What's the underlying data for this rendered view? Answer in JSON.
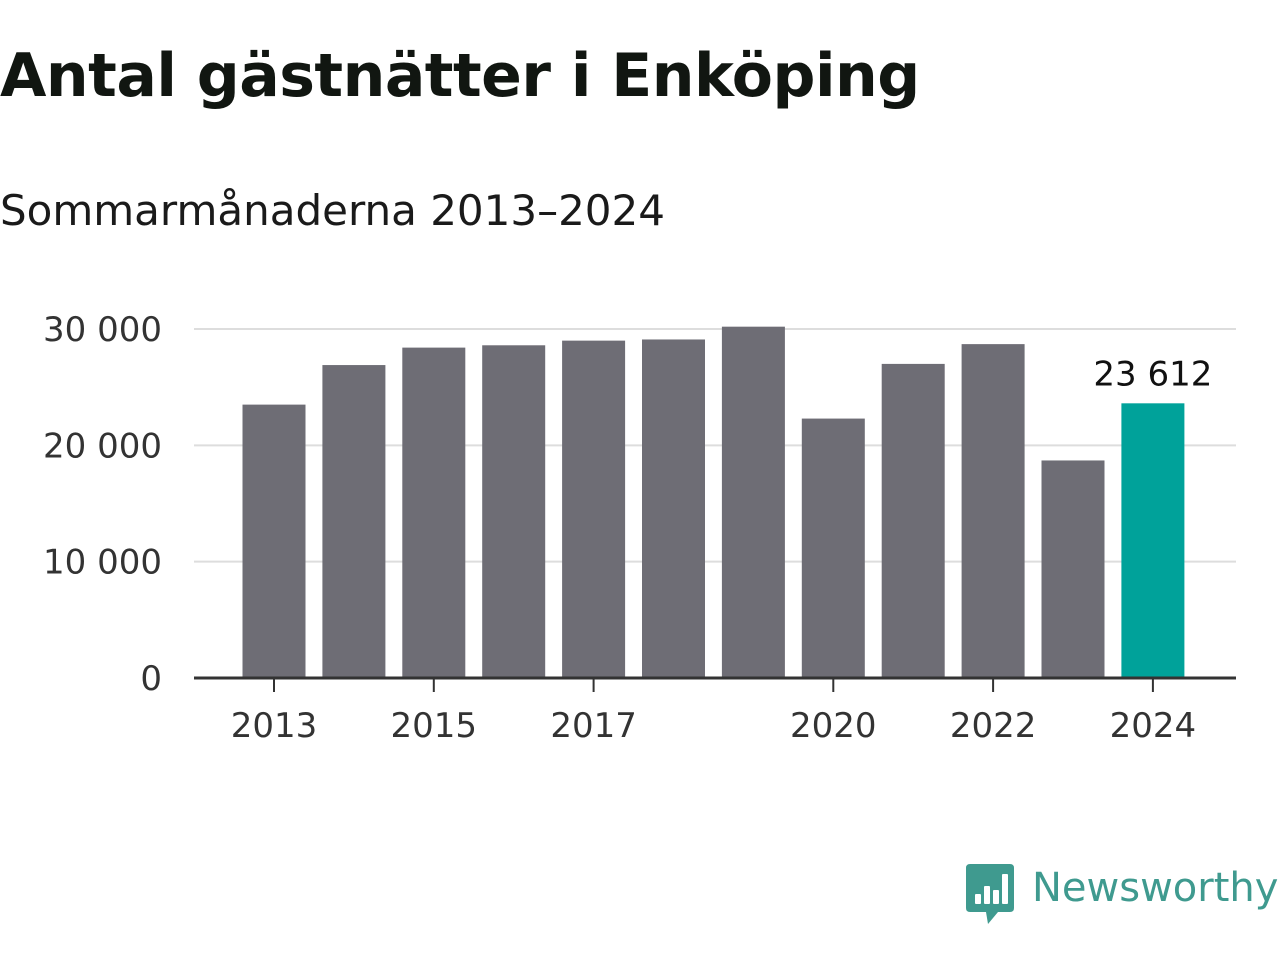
{
  "title": "Antal gästnätter i Enköping",
  "subtitle": "Sommarmånaderna 2013–2024",
  "logo": {
    "text": "Newsworthy",
    "icon": "newsworthy-chart-bubble-icon",
    "color": "#3f9a8f"
  },
  "colors": {
    "bar": "#6e6d75",
    "highlight": "#00a29a",
    "grid": "#dddddd",
    "axis": "#333333"
  },
  "chart_data": {
    "type": "bar",
    "title": "Antal gästnätter i Enköping",
    "subtitle": "Sommarmånaderna 2013–2024",
    "xlabel": "",
    "ylabel": "",
    "categories": [
      "2013",
      "2014",
      "2015",
      "2016",
      "2017",
      "2018",
      "2019",
      "2020",
      "2021",
      "2022",
      "2023",
      "2024"
    ],
    "values": [
      23500,
      26900,
      28400,
      28600,
      29000,
      29100,
      30200,
      22300,
      27000,
      28700,
      18700,
      23612
    ],
    "highlight_index": 11,
    "x_tick_labels": [
      "2013",
      "2015",
      "2017",
      "2020",
      "2022",
      "2024"
    ],
    "y_ticks": [
      0,
      10000,
      20000,
      30000
    ],
    "y_tick_labels": [
      "0",
      "10 000",
      "20 000",
      "30 000"
    ],
    "ylim": [
      0,
      30000
    ],
    "grid": true,
    "legend": "none",
    "annotation": {
      "category": "2024",
      "text": "23 612"
    }
  }
}
